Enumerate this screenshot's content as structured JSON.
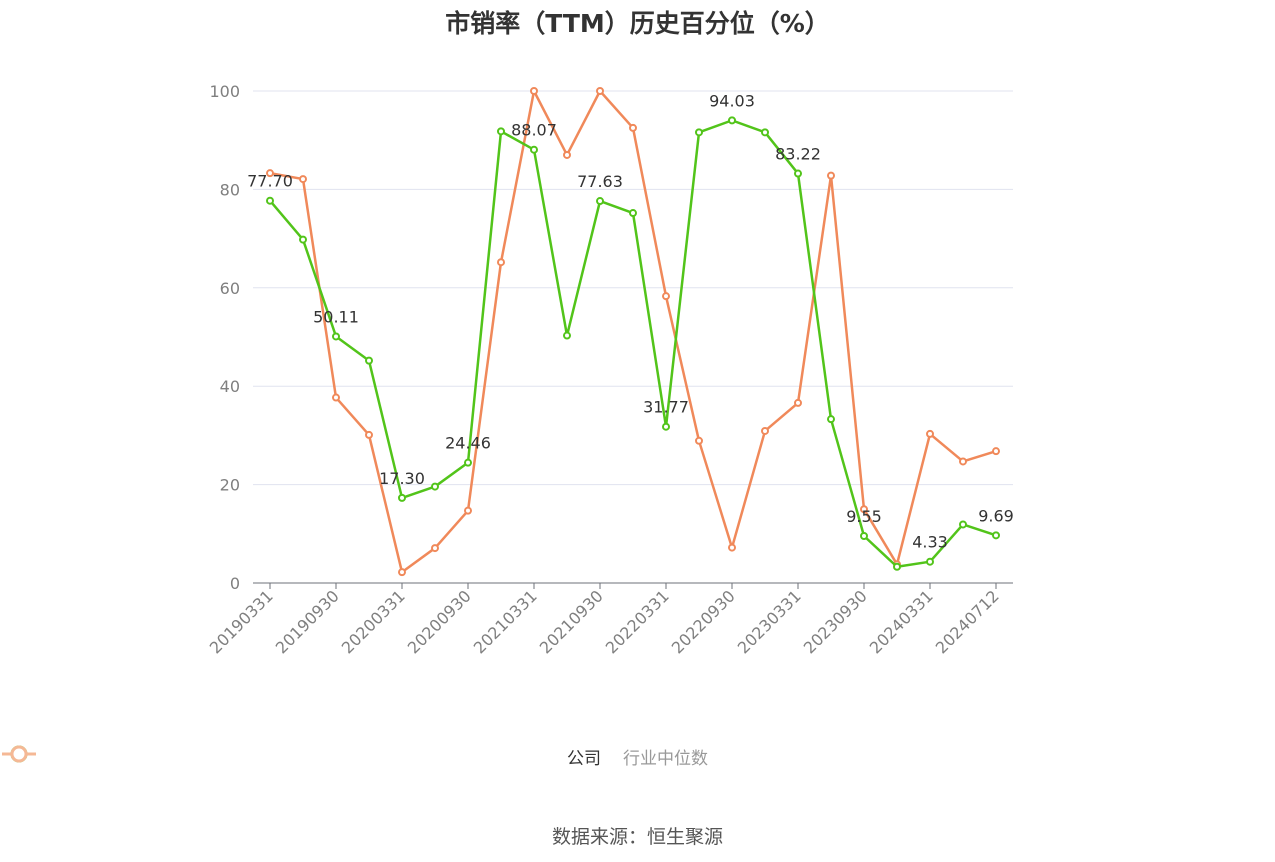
{
  "title": "市销率（TTM）历史百分位（%）",
  "source": "数据来源：恒生聚源",
  "chart_data": {
    "type": "line",
    "title": "市销率（TTM）历史百分位（%）",
    "ylim": [
      0,
      100
    ],
    "yticks": [
      "0",
      "20",
      "40",
      "60",
      "80",
      "100"
    ],
    "xtick_labels": [
      "20190331",
      "20190930",
      "20200331",
      "20200930",
      "20210331",
      "20210930",
      "20220331",
      "20220930",
      "20230331",
      "20230930",
      "20240331",
      "20240712"
    ],
    "x": [
      "20190331",
      "20190630",
      "20190930",
      "20191231",
      "20200331",
      "20200630",
      "20200930",
      "20201231",
      "20210331",
      "20210630",
      "20210930",
      "20211231",
      "20220331",
      "20220630",
      "20220930",
      "20221231",
      "20230331",
      "20230630",
      "20230930",
      "20231231",
      "20240331",
      "20240630",
      "20240712"
    ],
    "grid": true,
    "legend_position": "bottom",
    "series": [
      {
        "name": "公司",
        "color": "#52c41a",
        "values": [
          77.7,
          69.8,
          50.11,
          45.2,
          17.3,
          19.6,
          24.46,
          91.8,
          88.07,
          50.3,
          77.63,
          75.2,
          31.77,
          91.6,
          94.03,
          91.6,
          83.22,
          33.3,
          9.55,
          3.3,
          4.33,
          11.9,
          9.69
        ],
        "labels": [
          "77.70",
          "",
          "50.11",
          "",
          "17.30",
          "",
          "24.46",
          "",
          "88.07",
          "",
          "77.63",
          "",
          "31.77",
          "",
          "94.03",
          "",
          "83.22",
          "",
          "9.55",
          "",
          "4.33",
          "",
          "9.69"
        ]
      },
      {
        "name": "行业中位数",
        "color": "#f0895a",
        "values": [
          83.3,
          82.1,
          37.7,
          30.1,
          2.2,
          7.1,
          14.7,
          65.2,
          100.0,
          87.0,
          100.0,
          92.5,
          58.3,
          28.9,
          7.2,
          30.9,
          36.6,
          82.8,
          15.0,
          3.8,
          30.3,
          24.7,
          26.8
        ]
      }
    ]
  },
  "legend": {
    "items": [
      {
        "label": "公司",
        "color": "#52c41a",
        "state": "active"
      },
      {
        "label": "行业中位数",
        "color": "#f5b895",
        "state": "inactive"
      }
    ]
  }
}
